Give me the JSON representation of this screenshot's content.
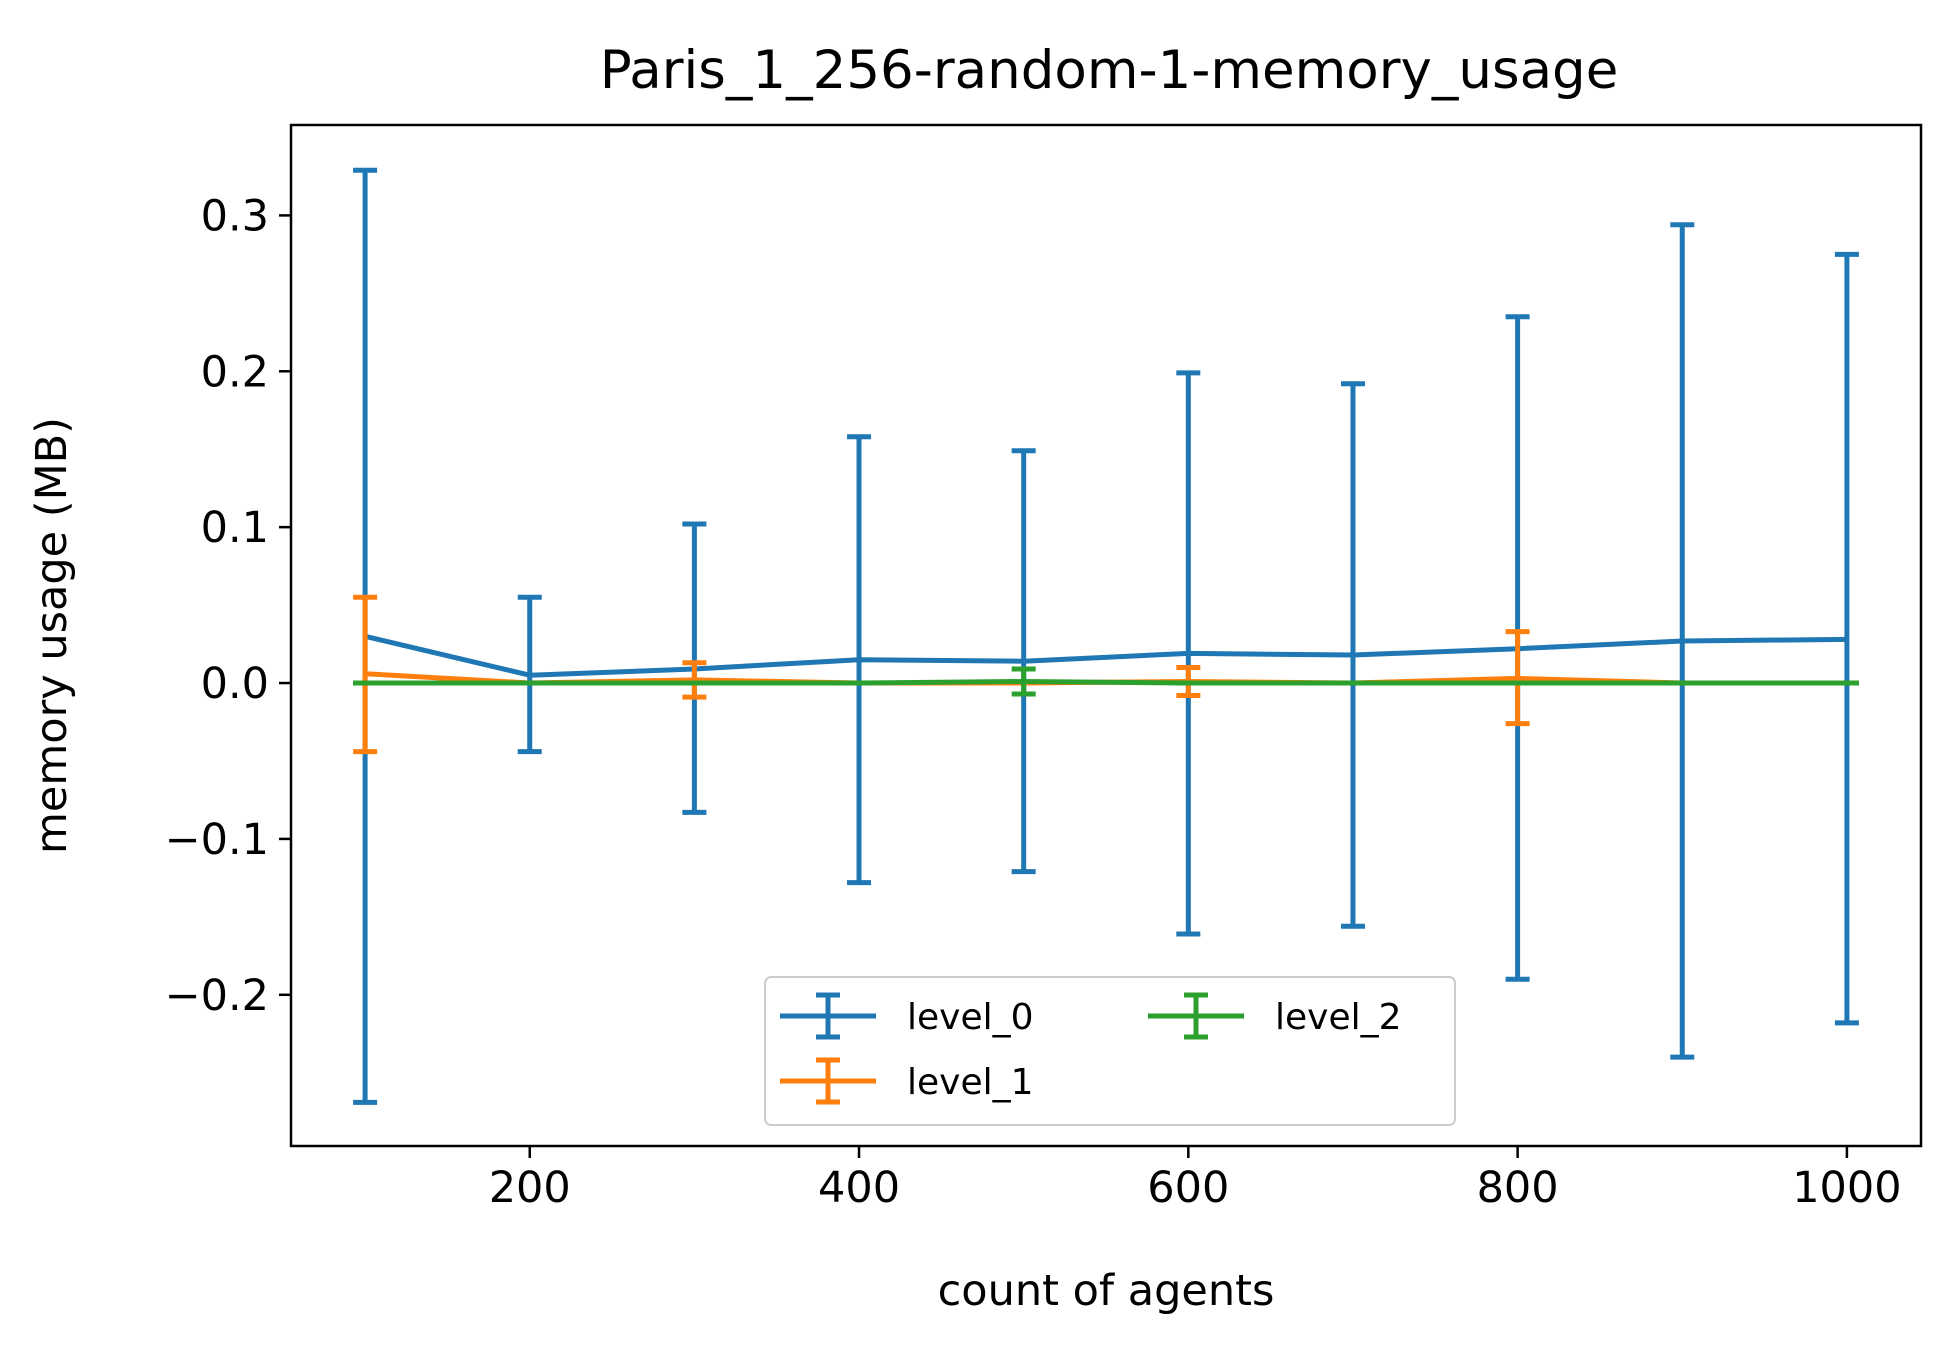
{
  "chart_data": {
    "type": "line",
    "title": "Paris_1_256-random-1-memory_usage",
    "xlabel": "count of agents",
    "ylabel": "memory usage (MB)",
    "xlim": [
      55,
      1045
    ],
    "ylim": [
      -0.297,
      0.358
    ],
    "x": [
      100,
      200,
      300,
      400,
      500,
      600,
      700,
      800,
      900,
      1000
    ],
    "xticks": [
      200,
      400,
      600,
      800,
      1000
    ],
    "xtick_labels": [
      "200",
      "400",
      "600",
      "800",
      "1000"
    ],
    "yticks": [
      -0.2,
      -0.1,
      0.0,
      0.1,
      0.2,
      0.3
    ],
    "ytick_labels": [
      "−0.2",
      "−0.1",
      "0.0",
      "0.1",
      "0.2",
      "0.3"
    ],
    "grid": false,
    "legend": {
      "placement": "lower center",
      "columns": 2
    },
    "series": [
      {
        "name": "level_0",
        "color": "#1f77b4",
        "values": [
          0.03,
          0.005,
          0.009,
          0.015,
          0.014,
          0.019,
          0.018,
          0.022,
          0.027,
          0.028
        ],
        "err_low": [
          -0.269,
          -0.044,
          -0.083,
          -0.128,
          -0.121,
          -0.161,
          -0.156,
          -0.19,
          -0.24,
          -0.218
        ],
        "err_high": [
          0.329,
          0.055,
          0.102,
          0.158,
          0.149,
          0.199,
          0.192,
          0.235,
          0.294,
          0.275
        ]
      },
      {
        "name": "level_1",
        "color": "#ff7f0e",
        "values": [
          0.006,
          0.0,
          0.002,
          0.0,
          0.0,
          0.001,
          0.0,
          0.003,
          0.0,
          0.0
        ],
        "err_low": [
          -0.044,
          0.0,
          -0.009,
          0.0,
          0.0,
          -0.008,
          0.0,
          -0.026,
          0.0,
          0.0
        ],
        "err_high": [
          0.055,
          0.0,
          0.013,
          0.0,
          0.0,
          0.01,
          0.0,
          0.033,
          0.0,
          0.0
        ]
      },
      {
        "name": "level_2",
        "color": "#2ca02c",
        "values": [
          0.0,
          0.0,
          0.0,
          0.0,
          0.001,
          0.0,
          0.0,
          0.0,
          0.0,
          0.0
        ],
        "err_low": [
          0.0,
          0.0,
          0.0,
          0.0,
          -0.007,
          0.0,
          0.0,
          0.0,
          0.0,
          0.0
        ],
        "err_high": [
          0.0,
          0.0,
          0.0,
          0.0,
          0.009,
          0.0,
          0.0,
          0.0,
          0.0,
          0.0
        ]
      }
    ]
  }
}
